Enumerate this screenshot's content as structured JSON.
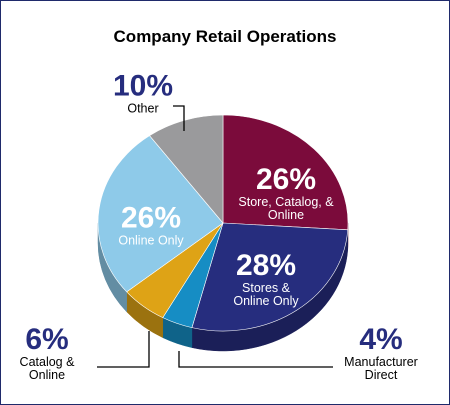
{
  "chart_data": {
    "type": "pie",
    "title": "Company Retail Operations",
    "categories": [
      "Store, Catalog, & Online",
      "Stores & Online Only",
      "Manufacturer Direct",
      "Catalog & Online",
      "Online Only",
      "Other"
    ],
    "values": [
      26,
      28,
      4,
      6,
      26,
      10
    ],
    "value_labels": [
      "26%",
      "28%",
      "4%",
      "6%",
      "26%",
      "10%"
    ],
    "colors": [
      "#7b0b3b",
      "#262d7e",
      "#168dc4",
      "#dea316",
      "#8ecae9",
      "#9a9a9c"
    ]
  }
}
